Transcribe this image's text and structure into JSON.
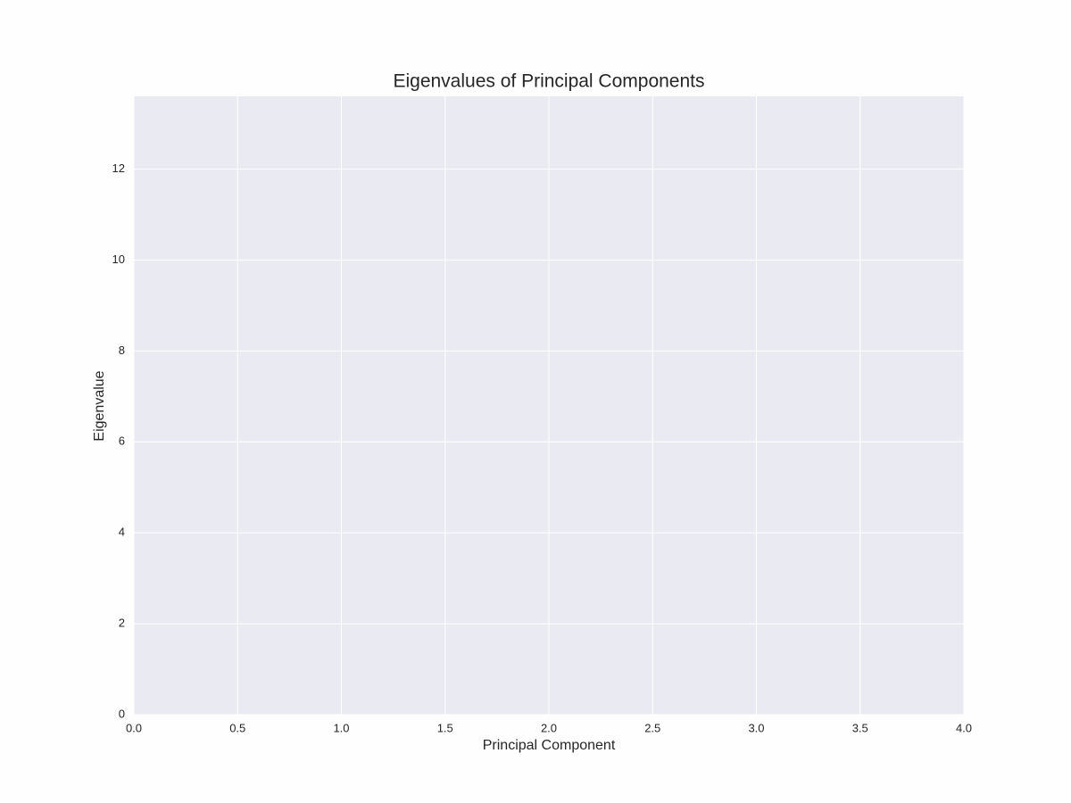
{
  "chart_data": {
    "type": "bar",
    "title": "Eigenvalues of Principal Components",
    "x_label": "Principal Component",
    "y_label": "Eigenvalue",
    "xlim": [
      0,
      4
    ],
    "xticks": [
      {
        "value": 0,
        "label": "0.0"
      },
      0.5,
      {
        "value": 1,
        "label": "1.0"
      },
      1.5,
      {
        "value": 2,
        "label": "2.0"
      },
      2.5,
      {
        "value": 3,
        "label": "3.0"
      },
      3.5,
      {
        "value": 4,
        "label": "4.0"
      }
    ],
    "ylim": [
      0,
      13.6
    ],
    "yticks": [
      0,
      2,
      4,
      6,
      8,
      10,
      12
    ],
    "grid": true,
    "background": "#eaeaf2"
  }
}
